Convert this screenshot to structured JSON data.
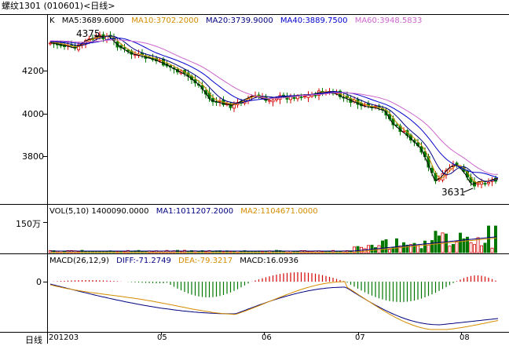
{
  "header": {
    "title": "螺纹1301 (010601)<日线>"
  },
  "price_panel": {
    "legend": {
      "prefix": "K",
      "ma5": "MA5:3689.6000",
      "ma10": "MA10:3702.2000",
      "ma20": "MA20:3739.9000",
      "ma40": "MA40:3889.7500",
      "ma60": "MA60:3948.5833"
    },
    "y_ticks": [
      "4200",
      "4000",
      "3800"
    ],
    "high_label": "4375",
    "low_label": "3631"
  },
  "volume_panel": {
    "legend": {
      "vol": "VOL(5,10) 1400090.0000",
      "ma1": "MA1:1011207.2000",
      "ma2": "MA2:1104671.0000"
    },
    "y_tick": "150万"
  },
  "macd_panel": {
    "legend": {
      "macd_params": "MACD(26,12,9)",
      "diff": "DIFF:-71.2749",
      "dea": "DEA:-79.3217",
      "macd": "MACD:16.0936"
    },
    "y_tick": "0"
  },
  "x_axis": {
    "prefix": "日线",
    "labels": [
      "201203",
      "05",
      "06",
      "07",
      "08"
    ]
  },
  "colors": {
    "up": "#d40000",
    "down": "#007800",
    "ma5": "#000000",
    "ma10": "#d48c00",
    "ma20": "#000080",
    "ma40": "#0000cc",
    "ma60": "#cc66cc"
  }
}
